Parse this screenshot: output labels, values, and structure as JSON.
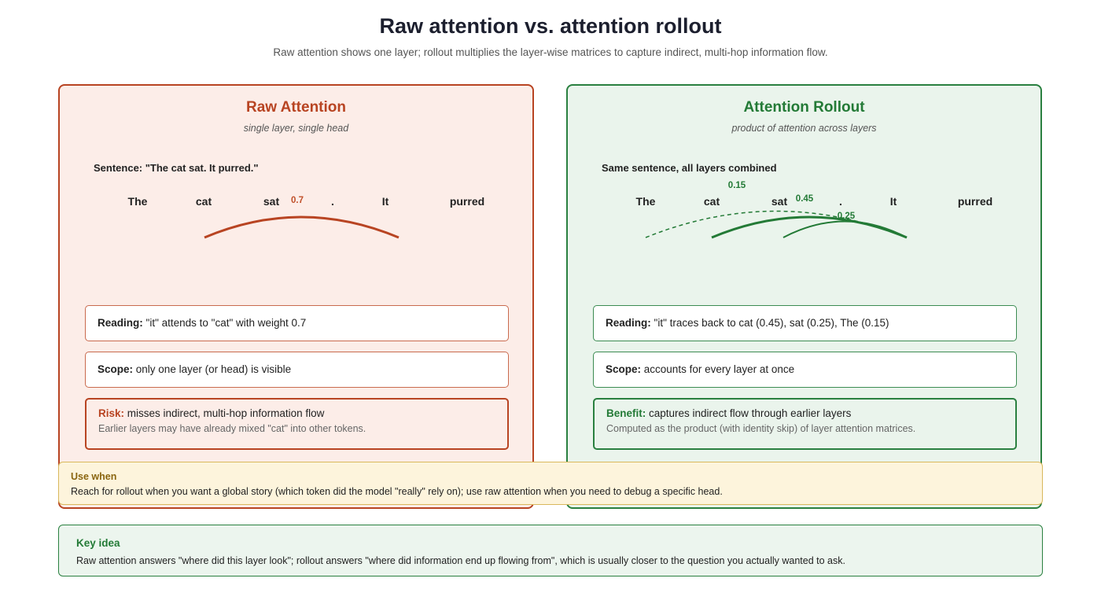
{
  "header": {
    "title": "Raw attention vs. attention rollout",
    "subtitle": "Raw attention shows one layer; rollout multiplies the layer-wise matrices to capture indirect, multi-hop information flow."
  },
  "tokens": [
    "The",
    "cat",
    "sat",
    ".",
    "It",
    "purred"
  ],
  "raw": {
    "title": "Raw Attention",
    "subtitle": "single layer, single head",
    "sentence_label": "Sentence: \"The cat sat. It purred.\"",
    "arcs": [
      {
        "from": "It",
        "to": "cat",
        "weight": "0.7",
        "style": "solid",
        "color": "#b84422"
      }
    ],
    "cards": {
      "reading": {
        "lead": "Reading:",
        "text": "\"it\" attends to \"cat\" with weight 0.7"
      },
      "scope": {
        "lead": "Scope:",
        "text": "only one layer (or head) is visible"
      },
      "risk": {
        "lead": "Risk:",
        "text": "misses indirect, multi-hop information flow",
        "note": "Earlier layers may have already mixed \"cat\" into other tokens."
      }
    }
  },
  "rollout": {
    "title": "Attention Rollout",
    "subtitle": "product of attention across layers",
    "sentence_label": "Same sentence, all layers combined",
    "arcs": [
      {
        "from": "It",
        "to": "cat",
        "weight": "0.45",
        "style": "solid-thick",
        "color": "#237a36"
      },
      {
        "from": "It",
        "to": "sat",
        "weight": "0.25",
        "style": "solid",
        "color": "#237a36"
      },
      {
        "from": "It",
        "to": "The",
        "weight": "0.15",
        "style": "dashed",
        "color": "#237a36"
      }
    ],
    "cards": {
      "reading": {
        "lead": "Reading:",
        "text": "\"it\" traces back to cat (0.45), sat (0.25), The (0.15)"
      },
      "scope": {
        "lead": "Scope:",
        "text": "accounts for every layer at once"
      },
      "benefit": {
        "lead": "Benefit:",
        "text": "captures indirect flow through earlier layers",
        "note": "Computed as the product (with identity skip) of layer attention matrices."
      }
    }
  },
  "use_when": {
    "heading": "Use when",
    "text": "Reach for rollout when you want a global story (which token did the model \"really\" rely on); use raw attention when you need to debug a specific head."
  },
  "key_idea": {
    "heading": "Key idea",
    "text": "Raw attention answers \"where did this layer look\"; rollout answers \"where did information end up flowing from\", which is usually closer to the question you actually wanted to ask."
  }
}
